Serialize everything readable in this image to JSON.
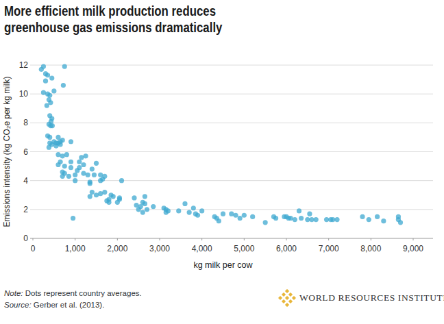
{
  "chart_data": {
    "type": "scatter",
    "title": "More efficient milk production reduces greenhouse gas emissions dramatically",
    "x_label": "kg milk per cow",
    "y_label": "Emissions intensity (kg CO₂e per kg milk)",
    "note_label": "Note:",
    "note": "Dots represent country averages.",
    "source_label": "Source:",
    "source": "Gerber et al. (2013).",
    "brand": "WORLD RESOURCES INSTITUTE",
    "color": "#3ea8d0",
    "marker": "circle",
    "grid": true,
    "xlim": [
      0,
      9000
    ],
    "xticks": [
      0,
      {
        "value": 1000,
        "label": "1,000"
      },
      {
        "value": 2000,
        "label": "2,000"
      },
      {
        "value": 3000,
        "label": "3,000"
      },
      {
        "value": 4000,
        "label": "4,000"
      },
      {
        "value": 5000,
        "label": "5,000"
      },
      {
        "value": 6000,
        "label": "6,000"
      },
      {
        "value": 7000,
        "label": "7,000"
      },
      {
        "value": 8000,
        "label": "8,000"
      },
      {
        "value": 9000,
        "label": "9,000"
      }
    ],
    "ylim": [
      0,
      12
    ],
    "yticks": [
      0,
      2,
      4,
      6,
      8,
      10,
      12
    ],
    "x": [
      200,
      250,
      300,
      350,
      300,
      250,
      350,
      400,
      380,
      420,
      330,
      500,
      450,
      750,
      720,
      400,
      450,
      430,
      380,
      420,
      460,
      350,
      400,
      500,
      550,
      600,
      650,
      600,
      700,
      380,
      450,
      400,
      900,
      550,
      650,
      600,
      700,
      800,
      650,
      900,
      600,
      750,
      700,
      750,
      850,
      700,
      1000,
      900,
      1100,
      1050,
      1000,
      1150,
      1200,
      1250,
      1100,
      1300,
      1200,
      1350,
      1350,
      1400,
      1500,
      1450,
      1600,
      1650,
      1700,
      1600,
      1400,
      1350,
      1500,
      1600,
      1700,
      1750,
      1800,
      1850,
      1900,
      2050,
      2000,
      1800,
      2100,
      2050,
      950,
      2400,
      2450,
      2550,
      2500,
      2600,
      2650,
      2650,
      2600,
      2700,
      2850,
      3100,
      3150,
      3200,
      3150,
      3450,
      3600,
      3700,
      3800,
      3850,
      3900,
      4000,
      4300,
      4350,
      4400,
      4500,
      4700,
      4800,
      5000,
      4900,
      5200,
      5500,
      5700,
      5750,
      5950,
      6000,
      6050,
      6100,
      6200,
      6300,
      6350,
      6500,
      6550,
      6700,
      6600,
      6950,
      7050,
      7100,
      7200,
      7800,
      7950,
      8150,
      8300,
      8650,
      8700,
      8650
    ],
    "values": [
      11.7,
      11.9,
      11.4,
      11.3,
      10.9,
      10.1,
      10.0,
      9.9,
      9.6,
      9.4,
      9.2,
      10.2,
      11.1,
      11.9,
      10.6,
      8.5,
      8.3,
      8.1,
      7.9,
      7.8,
      7.8,
      7.1,
      7.0,
      6.7,
      6.6,
      6.6,
      6.7,
      7.0,
      6.8,
      6.3,
      6.5,
      6.6,
      6.7,
      6.4,
      6.5,
      5.8,
      5.7,
      5.8,
      5.3,
      5.3,
      5.1,
      5.0,
      4.6,
      4.5,
      4.3,
      4.3,
      4.4,
      4.9,
      5.3,
      4.7,
      4.0,
      5.6,
      5.1,
      5.7,
      4.9,
      4.4,
      4.5,
      3.9,
      3.8,
      4.8,
      5.2,
      4.4,
      4.4,
      4.1,
      4.3,
      4.0,
      3.2,
      2.9,
      3.0,
      3.1,
      3.2,
      2.6,
      2.7,
      3.0,
      2.9,
      2.8,
      2.5,
      2.5,
      4.0,
      2.7,
      1.4,
      2.8,
      2.3,
      2.2,
      2.0,
      2.5,
      2.9,
      2.4,
      1.8,
      2.0,
      2.2,
      2.1,
      2.0,
      1.9,
      1.8,
      1.9,
      2.4,
      1.8,
      2.1,
      1.7,
      1.6,
      1.9,
      1.5,
      1.4,
      1.2,
      1.7,
      1.7,
      1.6,
      1.6,
      1.4,
      1.5,
      1.1,
      1.5,
      1.4,
      1.5,
      1.5,
      1.4,
      1.4,
      1.3,
      1.9,
      1.4,
      1.3,
      1.7,
      1.3,
      1.3,
      1.3,
      1.3,
      1.3,
      1.3,
      1.5,
      1.3,
      1.5,
      1.2,
      1.5,
      1.1,
      1.3
    ]
  }
}
